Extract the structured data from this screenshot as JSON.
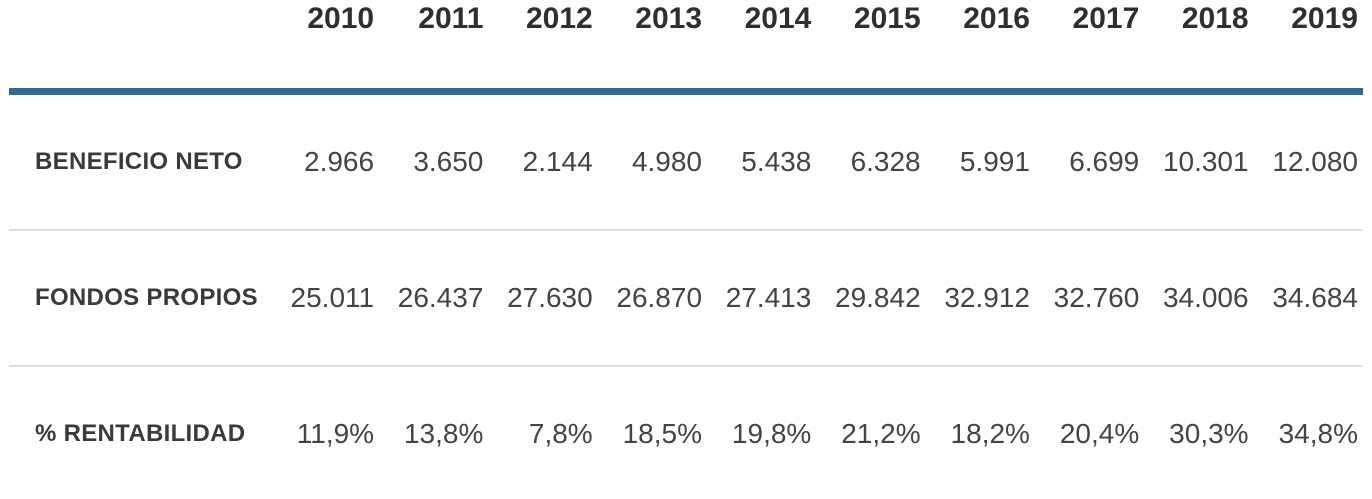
{
  "table": {
    "years": [
      "2010",
      "2011",
      "2012",
      "2013",
      "2014",
      "2015",
      "2016",
      "2017",
      "2018",
      "2019"
    ],
    "rows": [
      {
        "label": "BENEFICIO NETO",
        "values": [
          "2.966",
          "3.650",
          "2.144",
          "4.980",
          "5.438",
          "6.328",
          "5.991",
          "6.699",
          "10.301",
          "12.080"
        ]
      },
      {
        "label": "FONDOS PROPIOS",
        "values": [
          "25.011",
          "26.437",
          "27.630",
          "26.870",
          "27.413",
          "29.842",
          "32.912",
          "32.760",
          "34.006",
          "34.684"
        ]
      },
      {
        "label": "% RENTABILIDAD",
        "values": [
          "11,9%",
          "13,8%",
          "7,8%",
          "18,5%",
          "19,8%",
          "21,2%",
          "18,2%",
          "20,4%",
          "30,3%",
          "34,8%"
        ]
      }
    ],
    "colors": {
      "header_rule": "#2d6a9a",
      "row_rule": "#dedede",
      "header_text": "#2f2f2f",
      "label_text": "#3a3a3a",
      "value_text": "#444444"
    }
  },
  "chart_data": {
    "type": "table",
    "title": "",
    "columns": [
      "",
      "2010",
      "2011",
      "2012",
      "2013",
      "2014",
      "2015",
      "2016",
      "2017",
      "2018",
      "2019"
    ],
    "rows": [
      [
        "BENEFICIO NETO",
        "2.966",
        "3.650",
        "2.144",
        "4.980",
        "5.438",
        "6.328",
        "5.991",
        "6.699",
        "10.301",
        "12.080"
      ],
      [
        "FONDOS PROPIOS",
        "25.011",
        "26.437",
        "27.630",
        "26.870",
        "27.413",
        "29.842",
        "32.912",
        "32.760",
        "34.006",
        "34.684"
      ],
      [
        "% RENTABILIDAD",
        "11,9%",
        "13,8%",
        "7,8%",
        "18,5%",
        "19,8%",
        "21,2%",
        "18,2%",
        "20,4%",
        "30,3%",
        "34,8%"
      ]
    ],
    "series": [
      {
        "name": "BENEFICIO NETO",
        "values": [
          2966,
          3650,
          2144,
          4980,
          5438,
          6328,
          5991,
          6699,
          10301,
          12080
        ]
      },
      {
        "name": "FONDOS PROPIOS",
        "values": [
          25011,
          26437,
          27630,
          26870,
          27413,
          29842,
          32912,
          32760,
          34006,
          34684
        ]
      },
      {
        "name": "% RENTABILIDAD",
        "values": [
          11.9,
          13.8,
          7.8,
          18.5,
          19.8,
          21.2,
          18.2,
          20.4,
          30.3,
          34.8
        ]
      }
    ],
    "x": [
      2010,
      2011,
      2012,
      2013,
      2014,
      2015,
      2016,
      2017,
      2018,
      2019
    ],
    "number_format": "es-ES (dot thousands separator, comma decimal separator)"
  }
}
